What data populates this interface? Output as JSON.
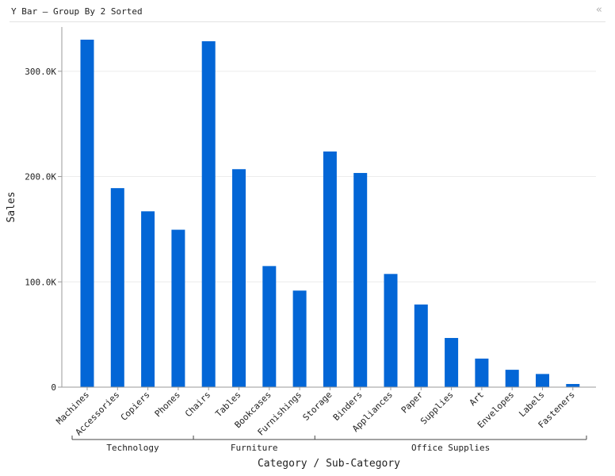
{
  "panel": {
    "title": "Y Bar – Group By 2 Sorted",
    "collapse_icon": "«"
  },
  "colors": {
    "bar": "#0366d6",
    "grid": "#ececec",
    "axis": "#999999"
  },
  "chart_data": {
    "type": "bar",
    "xlabel": "Category / Sub-Category",
    "ylabel": "Sales",
    "ylim": [
      0,
      340000
    ],
    "yticks": [
      {
        "value": 0,
        "label": "0"
      },
      {
        "value": 100000,
        "label": "100.0K"
      },
      {
        "value": 200000,
        "label": "200.0K"
      },
      {
        "value": 300000,
        "label": "300.0K"
      }
    ],
    "grid": true,
    "groups": [
      {
        "name": "Technology",
        "categories": [
          "Machines",
          "Accessories",
          "Copiers",
          "Phones"
        ]
      },
      {
        "name": "Furniture",
        "categories": [
          "Chairs",
          "Tables",
          "Bookcases",
          "Furnishings"
        ]
      },
      {
        "name": "Office Supplies",
        "categories": [
          "Storage",
          "Binders",
          "Appliances",
          "Paper",
          "Supplies",
          "Art",
          "Envelopes",
          "Labels",
          "Fasteners"
        ]
      }
    ],
    "categories": [
      "Machines",
      "Accessories",
      "Copiers",
      "Phones",
      "Chairs",
      "Tables",
      "Bookcases",
      "Furnishings",
      "Storage",
      "Binders",
      "Appliances",
      "Paper",
      "Supplies",
      "Art",
      "Envelopes",
      "Labels",
      "Fasteners"
    ],
    "values": [
      330000,
      189000,
      167000,
      149500,
      328500,
      207000,
      115000,
      91700,
      223800,
      203400,
      107500,
      78500,
      46700,
      27100,
      16500,
      12500,
      3000
    ]
  }
}
